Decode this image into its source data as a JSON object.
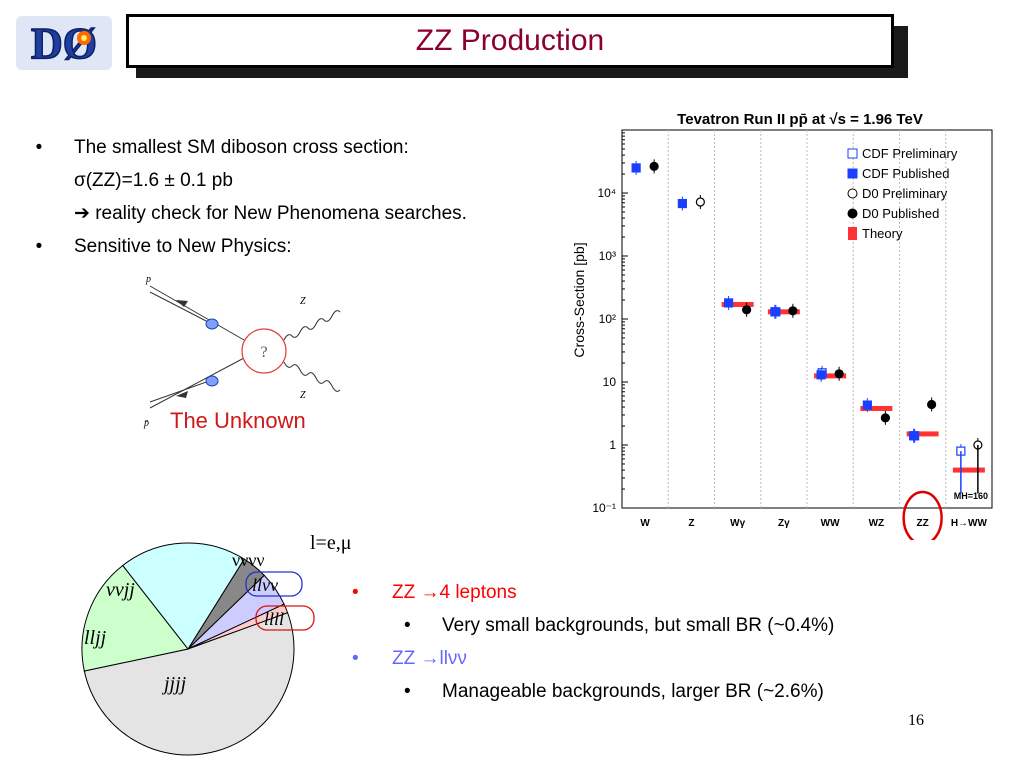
{
  "logo": {
    "text": "DØ"
  },
  "title": "ZZ Production",
  "bullets": [
    {
      "line1": "The smallest SM diboson cross section:",
      "line2": "σ(ZZ)=1.6 ± 0.1 pb",
      "line3": "reality check for New Phenomena searches."
    },
    {
      "line1": "Sensitive to New Physics:"
    }
  ],
  "diagram": {
    "p_label": "p",
    "pbar_label": "p̄",
    "z_top": "Z",
    "z_bottom": "Z",
    "question": "?",
    "unknown_label": "The Unknown"
  },
  "lepton_def": "l=e,μ",
  "pie": {
    "labels": {
      "nnjj": "ννjj",
      "lljj": "lljj",
      "jjjj": "jjjj",
      "nnnn": "νννν",
      "llnn": "llνν",
      "llll": "llll"
    },
    "colors": {
      "nnjj": "#ccffff",
      "lljj": "#ccffcc",
      "jjjj": "#e4e4e4",
      "nnnn": "#888888",
      "llnn": "#ccccff",
      "llll": "#ffcccc"
    }
  },
  "decays": [
    {
      "label": "ZZ →4 leptons",
      "color": "#ff0000",
      "sub": "Very small backgrounds, but small BR (~0.4%)"
    },
    {
      "label": "ZZ →llνν",
      "color": "#6666ff",
      "sub": "Manageable backgrounds, larger BR (~2.6%)"
    }
  ],
  "page_number": "16",
  "chart_data": {
    "type": "scatter",
    "title": "Tevatron Run II pp̄ at √s = 1.96 TeV",
    "ylabel": "Cross-Section [pb]",
    "yscale": "log",
    "ylim": [
      0.1,
      100000
    ],
    "ytick_labels": [
      "10⁻¹",
      "1",
      "10",
      "10²",
      "10³",
      "10⁴"
    ],
    "categories": [
      "W",
      "Z",
      "Wγ",
      "Zγ",
      "WW",
      "WZ",
      "ZZ",
      "H→WW"
    ],
    "legend": [
      "CDF Preliminary",
      "CDF Published",
      "D0 Preliminary",
      "D0 Published",
      "Theory"
    ],
    "annotation": "MH=160",
    "theory": [
      null,
      null,
      170,
      130,
      12.5,
      3.8,
      1.5,
      0.4
    ],
    "series": [
      {
        "name": "CDF Preliminary",
        "values": [
          null,
          null,
          null,
          130,
          14,
          null,
          1.4,
          0.8
        ]
      },
      {
        "name": "CDF Published",
        "values": [
          25000,
          6800,
          180,
          130,
          13,
          4.3,
          1.4,
          null
        ]
      },
      {
        "name": "D0 Preliminary",
        "values": [
          null,
          7200,
          null,
          null,
          null,
          null,
          null,
          1.0
        ]
      },
      {
        "name": "D0 Published",
        "values": [
          26500,
          null,
          140,
          135,
          13.5,
          2.7,
          4.4,
          null
        ]
      }
    ],
    "colors": {
      "cdf": "#1a3fff",
      "d0": "#000000",
      "theory": "#ff3333",
      "highlight": "#dd0000"
    }
  }
}
